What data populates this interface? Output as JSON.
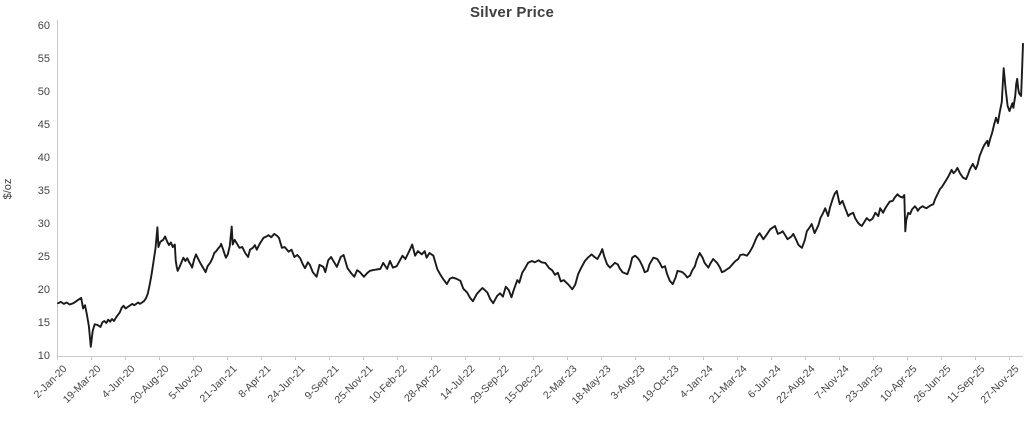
{
  "chart_data": {
    "type": "line",
    "title": "Silver Price",
    "ylabel": "$/oz",
    "xlabel": "",
    "ylim": [
      10,
      60
    ],
    "ytick_step": 5,
    "y_ticks": [
      10,
      15,
      20,
      25,
      30,
      35,
      40,
      45,
      50,
      55,
      60
    ],
    "grid": "off",
    "legend": "none",
    "background_color": "#ffffff",
    "axis_color": "#c9c9c9",
    "line_color": "#1a1a1a",
    "text_color": "#404040",
    "series_name": "Silver Price",
    "x_tick_labels": [
      "2-Jan-20",
      "19-Mar-20",
      "4-Jun-20",
      "20-Aug-20",
      "5-Nov-20",
      "21-Jan-21",
      "8-Apr-21",
      "24-Jun-21",
      "9-Sep-21",
      "25-Nov-21",
      "10-Feb-22",
      "28-Apr-22",
      "14-Jul-22",
      "29-Sep-22",
      "15-Dec-22",
      "2-Mar-23",
      "18-May-23",
      "3-Aug-23",
      "19-Oct-23",
      "4-Jan-24",
      "21-Mar-24",
      "6-Jun-24",
      "22-Aug-24",
      "7-Nov-24",
      "23-Jan-25",
      "10-Apr-25",
      "26-Jun-25",
      "11-Sep-25",
      "27-Nov-25"
    ],
    "points_note": "digitized daily silver price curve; each point = [position along x-axis in permille 0-1000, price $/oz]; x span = 2-Jan-20 through ~1-Dec-25",
    "points": [
      [
        0,
        18.0
      ],
      [
        3,
        18.2
      ],
      [
        6,
        17.9
      ],
      [
        9,
        18.1
      ],
      [
        12,
        17.8
      ],
      [
        16,
        18.0
      ],
      [
        19,
        18.3
      ],
      [
        22,
        18.6
      ],
      [
        24,
        18.8
      ],
      [
        26,
        17.2
      ],
      [
        28,
        17.7
      ],
      [
        30,
        16.2
      ],
      [
        32,
        14.5
      ],
      [
        34,
        11.4
      ],
      [
        36,
        13.8
      ],
      [
        38,
        14.8
      ],
      [
        41,
        14.7
      ],
      [
        44,
        14.4
      ],
      [
        46,
        15.1
      ],
      [
        48,
        15.3
      ],
      [
        50,
        15.0
      ],
      [
        52,
        15.5
      ],
      [
        54,
        15.2
      ],
      [
        56,
        15.6
      ],
      [
        58,
        15.3
      ],
      [
        60,
        15.8
      ],
      [
        62,
        16.2
      ],
      [
        64,
        16.6
      ],
      [
        66,
        17.3
      ],
      [
        68,
        17.6
      ],
      [
        70,
        17.2
      ],
      [
        73,
        17.5
      ],
      [
        75,
        17.7
      ],
      [
        77,
        17.9
      ],
      [
        79,
        17.7
      ],
      [
        81,
        17.9
      ],
      [
        83,
        18.1
      ],
      [
        85,
        17.9
      ],
      [
        87,
        18.1
      ],
      [
        89,
        18.3
      ],
      [
        91,
        18.7
      ],
      [
        93,
        19.4
      ],
      [
        95,
        20.8
      ],
      [
        97,
        22.4
      ],
      [
        99,
        24.3
      ],
      [
        101,
        26.3
      ],
      [
        103,
        29.5
      ],
      [
        104,
        26.5
      ],
      [
        106,
        27.3
      ],
      [
        109,
        27.6
      ],
      [
        111,
        28.1
      ],
      [
        113,
        27.4
      ],
      [
        115,
        26.8
      ],
      [
        117,
        27.2
      ],
      [
        119,
        26.5
      ],
      [
        121,
        26.9
      ],
      [
        122,
        24.5
      ],
      [
        123,
        23.5
      ],
      [
        124,
        22.9
      ],
      [
        126,
        23.5
      ],
      [
        128,
        24.2
      ],
      [
        130,
        24.9
      ],
      [
        132,
        24.4
      ],
      [
        134,
        24.8
      ],
      [
        136,
        24.2
      ],
      [
        138,
        23.7
      ],
      [
        139,
        23.4
      ],
      [
        141,
        24.6
      ],
      [
        143,
        25.4
      ],
      [
        145,
        24.8
      ],
      [
        147,
        24.2
      ],
      [
        149,
        23.7
      ],
      [
        151,
        23.2
      ],
      [
        153,
        22.7
      ],
      [
        155,
        23.6
      ],
      [
        158,
        24.2
      ],
      [
        160,
        24.8
      ],
      [
        162,
        25.6
      ],
      [
        164,
        25.9
      ],
      [
        166,
        26.3
      ],
      [
        168,
        26.6
      ],
      [
        169,
        27.0
      ],
      [
        171,
        26.2
      ],
      [
        173,
        25.3
      ],
      [
        174,
        24.9
      ],
      [
        176,
        25.4
      ],
      [
        178,
        26.7
      ],
      [
        180,
        29.6
      ],
      [
        181,
        26.9
      ],
      [
        183,
        27.6
      ],
      [
        186,
        26.9
      ],
      [
        188,
        26.4
      ],
      [
        191,
        26.5
      ],
      [
        194,
        25.6
      ],
      [
        197,
        25.0
      ],
      [
        199,
        26.1
      ],
      [
        202,
        26.4
      ],
      [
        204,
        26.8
      ],
      [
        206,
        26.1
      ],
      [
        209,
        27.0
      ],
      [
        213,
        27.9
      ],
      [
        216,
        28.1
      ],
      [
        218,
        28.3
      ],
      [
        221,
        28.0
      ],
      [
        224,
        28.5
      ],
      [
        227,
        28.2
      ],
      [
        229,
        27.9
      ],
      [
        232,
        26.4
      ],
      [
        235,
        26.5
      ],
      [
        239,
        25.8
      ],
      [
        242,
        26.1
      ],
      [
        245,
        25.0
      ],
      [
        248,
        25.3
      ],
      [
        251,
        24.8
      ],
      [
        254,
        23.8
      ],
      [
        256,
        23.3
      ],
      [
        259,
        24.2
      ],
      [
        261,
        23.8
      ],
      [
        264,
        22.7
      ],
      [
        268,
        22.0
      ],
      [
        271,
        23.8
      ],
      [
        275,
        23.5
      ],
      [
        277,
        22.7
      ],
      [
        280,
        24.5
      ],
      [
        283,
        25.0
      ],
      [
        285,
        24.5
      ],
      [
        289,
        23.5
      ],
      [
        293,
        25.0
      ],
      [
        296,
        25.3
      ],
      [
        300,
        23.3
      ],
      [
        304,
        22.5
      ],
      [
        307,
        22.0
      ],
      [
        310,
        23.0
      ],
      [
        313,
        22.7
      ],
      [
        317,
        22.0
      ],
      [
        320,
        22.5
      ],
      [
        323,
        22.9
      ],
      [
        326,
        23.0
      ],
      [
        330,
        23.1
      ],
      [
        334,
        23.2
      ],
      [
        337,
        24.1
      ],
      [
        341,
        23.2
      ],
      [
        344,
        24.4
      ],
      [
        347,
        23.4
      ],
      [
        351,
        23.6
      ],
      [
        357,
        25.2
      ],
      [
        360,
        24.7
      ],
      [
        365,
        26.2
      ],
      [
        367,
        26.9
      ],
      [
        370,
        25.2
      ],
      [
        373,
        25.9
      ],
      [
        377,
        25.4
      ],
      [
        380,
        25.9
      ],
      [
        382,
        24.9
      ],
      [
        385,
        25.6
      ],
      [
        389,
        25.2
      ],
      [
        393,
        23.2
      ],
      [
        396,
        22.4
      ],
      [
        399,
        21.7
      ],
      [
        403,
        20.9
      ],
      [
        406,
        21.7
      ],
      [
        409,
        21.9
      ],
      [
        413,
        21.7
      ],
      [
        417,
        21.4
      ],
      [
        420,
        20.2
      ],
      [
        424,
        19.6
      ],
      [
        427,
        18.8
      ],
      [
        430,
        18.3
      ],
      [
        434,
        19.4
      ],
      [
        437,
        19.9
      ],
      [
        440,
        20.3
      ],
      [
        445,
        19.6
      ],
      [
        448,
        18.6
      ],
      [
        451,
        18.0
      ],
      [
        455,
        19.1
      ],
      [
        458,
        19.5
      ],
      [
        461,
        19.0
      ],
      [
        464,
        20.5
      ],
      [
        467,
        20.0
      ],
      [
        470,
        18.9
      ],
      [
        472,
        19.9
      ],
      [
        476,
        21.5
      ],
      [
        478,
        21.1
      ],
      [
        481,
        22.6
      ],
      [
        484,
        23.3
      ],
      [
        487,
        24.1
      ],
      [
        491,
        24.4
      ],
      [
        494,
        24.2
      ],
      [
        498,
        24.5
      ],
      [
        501,
        24.2
      ],
      [
        505,
        24.1
      ],
      [
        509,
        23.3
      ],
      [
        512,
        23.0
      ],
      [
        515,
        22.3
      ],
      [
        518,
        22.6
      ],
      [
        521,
        21.3
      ],
      [
        524,
        21.5
      ],
      [
        529,
        20.8
      ],
      [
        533,
        20.1
      ],
      [
        536,
        20.8
      ],
      [
        539,
        22.4
      ],
      [
        542,
        23.3
      ],
      [
        546,
        24.4
      ],
      [
        549,
        24.9
      ],
      [
        553,
        25.4
      ],
      [
        556,
        25.0
      ],
      [
        559,
        24.7
      ],
      [
        562,
        25.5
      ],
      [
        564,
        26.2
      ],
      [
        566,
        25.1
      ],
      [
        569,
        23.9
      ],
      [
        572,
        23.4
      ],
      [
        575,
        23.8
      ],
      [
        577,
        24.1
      ],
      [
        580,
        23.9
      ],
      [
        582,
        23.3
      ],
      [
        585,
        22.7
      ],
      [
        590,
        22.4
      ],
      [
        593,
        23.6
      ],
      [
        595,
        24.9
      ],
      [
        598,
        25.2
      ],
      [
        601,
        24.8
      ],
      [
        603,
        24.4
      ],
      [
        606,
        23.5
      ],
      [
        608,
        22.7
      ],
      [
        611,
        22.9
      ],
      [
        613,
        23.9
      ],
      [
        617,
        24.9
      ],
      [
        619,
        24.8
      ],
      [
        621,
        24.7
      ],
      [
        624,
        24.0
      ],
      [
        626,
        23.4
      ],
      [
        629,
        23.6
      ],
      [
        631,
        22.5
      ],
      [
        634,
        21.4
      ],
      [
        637,
        20.9
      ],
      [
        640,
        21.9
      ],
      [
        642,
        22.9
      ],
      [
        645,
        22.8
      ],
      [
        647,
        22.7
      ],
      [
        650,
        22.3
      ],
      [
        652,
        21.9
      ],
      [
        655,
        22.2
      ],
      [
        657,
        22.9
      ],
      [
        660,
        23.6
      ],
      [
        662,
        24.6
      ],
      [
        665,
        25.6
      ],
      [
        668,
        24.9
      ],
      [
        670,
        24.1
      ],
      [
        674,
        23.4
      ],
      [
        676,
        24.0
      ],
      [
        679,
        24.7
      ],
      [
        681,
        24.4
      ],
      [
        683,
        24.1
      ],
      [
        686,
        23.4
      ],
      [
        688,
        22.7
      ],
      [
        691,
        22.9
      ],
      [
        693,
        23.1
      ],
      [
        696,
        23.4
      ],
      [
        699,
        23.9
      ],
      [
        702,
        24.4
      ],
      [
        705,
        24.7
      ],
      [
        707,
        25.3
      ],
      [
        710,
        25.4
      ],
      [
        714,
        25.2
      ],
      [
        717,
        25.8
      ],
      [
        720,
        26.6
      ],
      [
        724,
        28.0
      ],
      [
        727,
        28.6
      ],
      [
        731,
        27.7
      ],
      [
        734,
        28.3
      ],
      [
        738,
        29.2
      ],
      [
        741,
        29.5
      ],
      [
        743,
        29.7
      ],
      [
        746,
        28.5
      ],
      [
        749,
        28.7
      ],
      [
        751,
        28.9
      ],
      [
        754,
        28.2
      ],
      [
        756,
        27.7
      ],
      [
        760,
        28.1
      ],
      [
        762,
        28.5
      ],
      [
        765,
        27.6
      ],
      [
        767,
        26.9
      ],
      [
        769,
        26.6
      ],
      [
        771,
        26.4
      ],
      [
        774,
        27.6
      ],
      [
        776,
        28.9
      ],
      [
        779,
        29.5
      ],
      [
        781,
        30.0
      ],
      [
        784,
        28.6
      ],
      [
        788,
        29.8
      ],
      [
        790,
        30.9
      ],
      [
        793,
        31.7
      ],
      [
        795,
        32.4
      ],
      [
        798,
        31.2
      ],
      [
        800,
        32.5
      ],
      [
        803,
        33.9
      ],
      [
        805,
        34.6
      ],
      [
        807,
        35.0
      ],
      [
        810,
        33.0
      ],
      [
        813,
        33.5
      ],
      [
        816,
        32.3
      ],
      [
        819,
        31.2
      ],
      [
        821,
        31.5
      ],
      [
        824,
        31.7
      ],
      [
        826,
        30.9
      ],
      [
        829,
        30.2
      ],
      [
        831,
        29.9
      ],
      [
        833,
        29.7
      ],
      [
        836,
        30.4
      ],
      [
        838,
        30.9
      ],
      [
        841,
        30.5
      ],
      [
        844,
        30.8
      ],
      [
        847,
        31.7
      ],
      [
        850,
        31.2
      ],
      [
        852,
        32.4
      ],
      [
        855,
        31.7
      ],
      [
        857,
        32.3
      ],
      [
        860,
        33.0
      ],
      [
        862,
        33.4
      ],
      [
        865,
        33.5
      ],
      [
        867,
        34.0
      ],
      [
        870,
        34.5
      ],
      [
        872,
        34.2
      ],
      [
        875,
        34.0
      ],
      [
        877,
        34.4
      ],
      [
        878,
        28.9
      ],
      [
        879,
        30.5
      ],
      [
        881,
        31.7
      ],
      [
        883,
        31.5
      ],
      [
        885,
        32.2
      ],
      [
        888,
        32.7
      ],
      [
        890,
        32.3
      ],
      [
        891,
        32.0
      ],
      [
        893,
        32.4
      ],
      [
        896,
        32.7
      ],
      [
        898,
        32.5
      ],
      [
        900,
        32.4
      ],
      [
        904,
        32.8
      ],
      [
        907,
        33.0
      ],
      [
        909,
        33.8
      ],
      [
        912,
        34.7
      ],
      [
        914,
        35.3
      ],
      [
        916,
        35.6
      ],
      [
        918,
        36.1
      ],
      [
        921,
        36.8
      ],
      [
        923,
        37.3
      ],
      [
        926,
        38.2
      ],
      [
        928,
        37.7
      ],
      [
        930,
        38.0
      ],
      [
        932,
        38.5
      ],
      [
        935,
        37.6
      ],
      [
        938,
        37.0
      ],
      [
        941,
        36.8
      ],
      [
        943,
        37.5
      ],
      [
        945,
        38.3
      ],
      [
        948,
        39.1
      ],
      [
        951,
        38.3
      ],
      [
        953,
        39.0
      ],
      [
        955,
        40.3
      ],
      [
        958,
        41.4
      ],
      [
        960,
        42.0
      ],
      [
        963,
        42.6
      ],
      [
        964,
        41.8
      ],
      [
        966,
        42.9
      ],
      [
        968,
        43.8
      ],
      [
        970,
        45.0
      ],
      [
        972,
        46.1
      ],
      [
        974,
        45.3
      ],
      [
        976,
        47.0
      ],
      [
        978,
        48.5
      ],
      [
        979,
        51.0
      ],
      [
        980,
        53.6
      ],
      [
        982,
        50.5
      ],
      [
        984,
        47.9
      ],
      [
        986,
        47.1
      ],
      [
        989,
        48.3
      ],
      [
        990,
        47.6
      ],
      [
        992,
        49.5
      ],
      [
        993,
        51.2
      ],
      [
        994,
        52.0
      ],
      [
        995,
        50.5
      ],
      [
        996,
        49.8
      ],
      [
        998,
        49.4
      ],
      [
        999,
        53.0
      ],
      [
        1000,
        57.3
      ]
    ]
  }
}
